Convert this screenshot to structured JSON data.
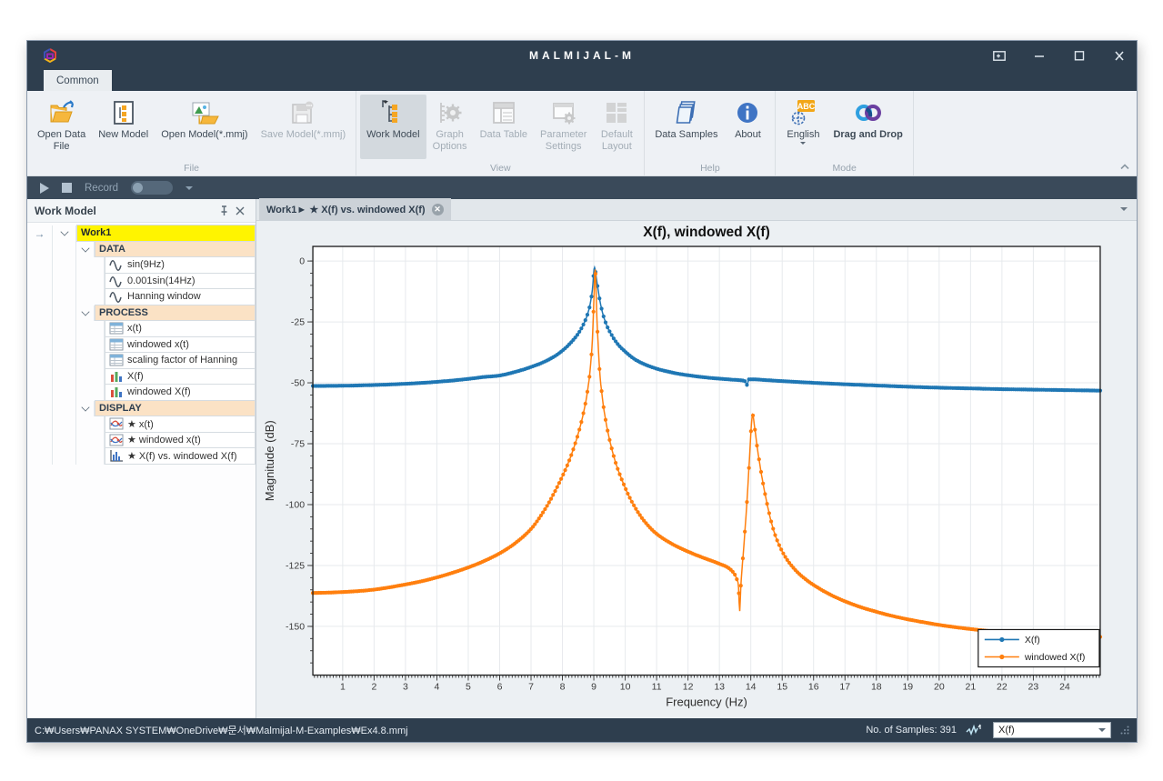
{
  "window": {
    "title": "MALMIJAL-M",
    "controls": [
      {
        "name": "fullscreen",
        "glyph": "fullscreen-icon"
      },
      {
        "name": "minimize",
        "glyph": "minimize-icon"
      },
      {
        "name": "maximize",
        "glyph": "maximize-icon"
      },
      {
        "name": "close",
        "glyph": "close-icon"
      }
    ]
  },
  "ribbon": {
    "tabs": [
      {
        "label": "Common",
        "active": true
      }
    ],
    "groups": [
      {
        "label": "File",
        "buttons": [
          {
            "label": "Open Data\nFile",
            "icon": "open-data-file-icon",
            "enabled": true
          },
          {
            "label": "New Model",
            "icon": "new-model-icon",
            "enabled": true
          },
          {
            "label": "Open Model(*.mmj)",
            "icon": "open-model-icon",
            "enabled": true
          },
          {
            "label": "Save Model(*.mmj)",
            "icon": "save-model-icon",
            "enabled": false
          }
        ]
      },
      {
        "label": "View",
        "buttons": [
          {
            "label": "Work Model",
            "icon": "work-model-icon",
            "enabled": true,
            "active": true
          },
          {
            "label": "Graph\nOptions",
            "icon": "graph-options-icon",
            "enabled": false
          },
          {
            "label": "Data Table",
            "icon": "data-table-icon",
            "enabled": false
          },
          {
            "label": "Parameter\nSettings",
            "icon": "parameter-settings-icon",
            "enabled": false
          },
          {
            "label": "Default\nLayout",
            "icon": "default-layout-icon",
            "enabled": false
          }
        ]
      },
      {
        "label": "Help",
        "buttons": [
          {
            "label": "Data Samples",
            "icon": "data-samples-icon",
            "enabled": true
          },
          {
            "label": "About",
            "icon": "about-icon",
            "enabled": true
          }
        ]
      },
      {
        "label": "Mode",
        "buttons": [
          {
            "label": "English",
            "icon": "english-language-icon",
            "enabled": true,
            "dropdown": true
          },
          {
            "label": "Drag and Drop",
            "icon": "drag-and-drop-icon",
            "enabled": true,
            "bold": true
          }
        ]
      }
    ]
  },
  "record_bar": {
    "label": "Record"
  },
  "work_model_panel": {
    "title": "Work Model",
    "tree": [
      {
        "label": "Work1",
        "type": "root",
        "icon": null
      },
      {
        "label": "DATA",
        "type": "section",
        "icon": null
      },
      {
        "label": "sin(9Hz)",
        "type": "item",
        "icon": "sine-wave-icon"
      },
      {
        "label": "0.001sin(14Hz)",
        "type": "item",
        "icon": "sine-wave-icon"
      },
      {
        "label": "Hanning window",
        "type": "item",
        "icon": "sine-wave-icon"
      },
      {
        "label": "PROCESS",
        "type": "section",
        "icon": null
      },
      {
        "label": "x(t)",
        "type": "item",
        "icon": "table-icon"
      },
      {
        "label": "windowed x(t)",
        "type": "item",
        "icon": "table-icon"
      },
      {
        "label": "scaling factor of Hanning",
        "type": "item",
        "icon": "table-icon"
      },
      {
        "label": "X(f)",
        "type": "item",
        "icon": "bar-series-icon"
      },
      {
        "label": "windowed X(f)",
        "type": "item",
        "icon": "bar-series-icon"
      },
      {
        "label": "DISPLAY",
        "type": "section",
        "icon": null
      },
      {
        "label": "★ x(t)",
        "type": "item",
        "icon": "line-plot-icon"
      },
      {
        "label": "★ windowed x(t)",
        "type": "item",
        "icon": "line-plot-icon"
      },
      {
        "label": "★ X(f) vs. windowed X(f)",
        "type": "item",
        "icon": "bar-plot-icon"
      }
    ]
  },
  "document_tab": {
    "label": "Work1► ★ X(f) vs. windowed X(f)"
  },
  "status_bar": {
    "file_path": "C:₩Users₩PANAX SYSTEM₩OneDrive₩문서₩Malmijal-M-Examples₩Ex4.8.mmj",
    "samples_label": "No. of Samples: 391",
    "selector_value": "X(f)"
  },
  "chart_data": {
    "type": "line",
    "title": "X(f), windowed X(f)",
    "xlabel": "Frequency (Hz)",
    "ylabel": "Magnitude (dB)",
    "xlim": [
      0.05,
      25.13
    ],
    "ylim": [
      -170,
      6
    ],
    "x_major_ticks": [
      1,
      2,
      3,
      4,
      5,
      6,
      7,
      8,
      9,
      10,
      11,
      12,
      13,
      14,
      15,
      16,
      17,
      18,
      19,
      20,
      21,
      22,
      23,
      24
    ],
    "y_major_ticks": [
      0,
      -25,
      -50,
      -75,
      -100,
      -125,
      -150
    ],
    "x_minor_step": 0.1,
    "y_minor_step": 5,
    "grid": true,
    "legend_position": "lower right",
    "sample_count": 391,
    "marker": "dot",
    "series": [
      {
        "name": "X(f)",
        "color": "#1f77b4",
        "points": [
          [
            0.05,
            -51.3
          ],
          [
            1,
            -51.2
          ],
          [
            2,
            -50.9
          ],
          [
            3,
            -50.4
          ],
          [
            4,
            -49.6
          ],
          [
            5,
            -48.4
          ],
          [
            5.5,
            -47.6
          ],
          [
            6,
            -47.0
          ],
          [
            6.5,
            -45.5
          ],
          [
            7,
            -43.5
          ],
          [
            7.5,
            -40.9
          ],
          [
            7.9,
            -37.8
          ],
          [
            8.2,
            -34.4
          ],
          [
            8.5,
            -29.8
          ],
          [
            8.7,
            -25.2
          ],
          [
            8.82,
            -21
          ],
          [
            8.9,
            -16.5
          ],
          [
            8.96,
            -11
          ],
          [
            9.02,
            -2.6
          ],
          [
            9.08,
            -7
          ],
          [
            9.15,
            -13
          ],
          [
            9.25,
            -19.8
          ],
          [
            9.38,
            -25.4
          ],
          [
            9.55,
            -30
          ],
          [
            9.75,
            -33.9
          ],
          [
            10,
            -37.2
          ],
          [
            10.3,
            -40.3
          ],
          [
            10.6,
            -42.3
          ],
          [
            11,
            -44.2
          ],
          [
            11.5,
            -45.8
          ],
          [
            12,
            -46.9
          ],
          [
            12.5,
            -47.7
          ],
          [
            13,
            -48.3
          ],
          [
            13.4,
            -48.7
          ],
          [
            13.7,
            -49.0
          ],
          [
            13.82,
            -49.4
          ],
          [
            13.88,
            -50.9
          ],
          [
            13.94,
            -48.6
          ],
          [
            14.1,
            -48.6
          ],
          [
            14.5,
            -48.9
          ],
          [
            15,
            -49.3
          ],
          [
            16,
            -50.0
          ],
          [
            17,
            -50.6
          ],
          [
            18,
            -51.1
          ],
          [
            19,
            -51.6
          ],
          [
            20,
            -52.0
          ],
          [
            21,
            -52.3
          ],
          [
            22,
            -52.6
          ],
          [
            23,
            -52.8
          ],
          [
            24,
            -53.0
          ],
          [
            25.13,
            -53.2
          ]
        ]
      },
      {
        "name": "windowed X(f)",
        "color": "#ff7f0e",
        "points": [
          [
            0.05,
            -136.3
          ],
          [
            1,
            -135.9
          ],
          [
            2,
            -134.9
          ],
          [
            3,
            -132.8
          ],
          [
            3.5,
            -131.5
          ],
          [
            4,
            -129.9
          ],
          [
            4.5,
            -128
          ],
          [
            5,
            -125.8
          ],
          [
            5.5,
            -123.2
          ],
          [
            6,
            -120
          ],
          [
            6.5,
            -115.8
          ],
          [
            7,
            -110
          ],
          [
            7.3,
            -104.8
          ],
          [
            7.6,
            -98.5
          ],
          [
            7.9,
            -91
          ],
          [
            8.1,
            -85.5
          ],
          [
            8.3,
            -79
          ],
          [
            8.5,
            -71
          ],
          [
            8.65,
            -63.5
          ],
          [
            8.78,
            -55
          ],
          [
            8.88,
            -45
          ],
          [
            8.95,
            -33
          ],
          [
            9.0,
            -17
          ],
          [
            9.04,
            -3.4
          ],
          [
            9.1,
            -24
          ],
          [
            9.18,
            -44
          ],
          [
            9.28,
            -57
          ],
          [
            9.4,
            -67
          ],
          [
            9.55,
            -76
          ],
          [
            9.7,
            -83
          ],
          [
            9.9,
            -90
          ],
          [
            10.1,
            -96
          ],
          [
            10.4,
            -103
          ],
          [
            10.7,
            -108.2
          ],
          [
            11,
            -112
          ],
          [
            11.5,
            -116.2
          ],
          [
            12,
            -119.3
          ],
          [
            12.5,
            -121.9
          ],
          [
            13,
            -124.3
          ],
          [
            13.3,
            -126.1
          ],
          [
            13.45,
            -128
          ],
          [
            13.55,
            -130.5
          ],
          [
            13.61,
            -134
          ],
          [
            13.645,
            -143.8
          ],
          [
            13.68,
            -134
          ],
          [
            13.73,
            -125
          ],
          [
            13.79,
            -115
          ],
          [
            13.85,
            -104
          ],
          [
            13.91,
            -92
          ],
          [
            13.97,
            -78
          ],
          [
            14.02,
            -67
          ],
          [
            14.06,
            -63.2
          ],
          [
            14.12,
            -68
          ],
          [
            14.2,
            -76
          ],
          [
            14.3,
            -84.5
          ],
          [
            14.4,
            -92
          ],
          [
            14.5,
            -98.5
          ],
          [
            14.62,
            -105.5
          ],
          [
            14.75,
            -111.5
          ],
          [
            14.9,
            -116.5
          ],
          [
            15.1,
            -121.5
          ],
          [
            15.4,
            -126.6
          ],
          [
            15.8,
            -131.2
          ],
          [
            16.2,
            -134.6
          ],
          [
            16.6,
            -137.4
          ],
          [
            17,
            -139.7
          ],
          [
            17.5,
            -142.1
          ],
          [
            18,
            -144
          ],
          [
            18.5,
            -145.7
          ],
          [
            19,
            -147.1
          ],
          [
            19.5,
            -148.3
          ],
          [
            20,
            -149.4
          ],
          [
            20.5,
            -150.3
          ],
          [
            21,
            -151.1
          ],
          [
            21.5,
            -151.8
          ],
          [
            22,
            -152.4
          ],
          [
            22.5,
            -152.9
          ],
          [
            23,
            -153.3
          ],
          [
            23.5,
            -153.6
          ],
          [
            24,
            -153.9
          ],
          [
            24.5,
            -154.1
          ],
          [
            25.13,
            -154.3
          ]
        ]
      }
    ]
  }
}
